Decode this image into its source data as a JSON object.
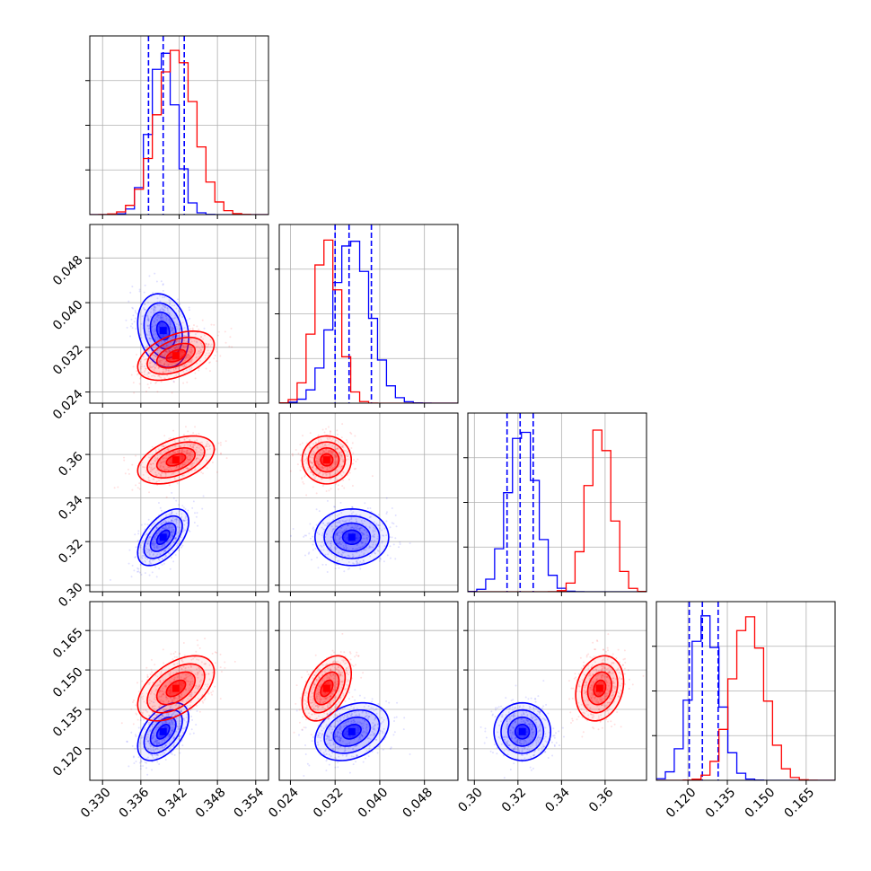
{
  "chart_data": {
    "type": "corner",
    "grid": true,
    "colors": {
      "blue_series": "#0000ff",
      "red_series": "#ff0000",
      "grid": "#b0b0b0",
      "axes": "#000000"
    },
    "params": [
      {
        "range": [
          0.328,
          0.356
        ],
        "ticks": [
          0.33,
          0.336,
          0.342,
          0.348,
          0.354
        ],
        "tick_labels": [
          "0.330",
          "0.336",
          "0.342",
          "0.348",
          "0.354"
        ]
      },
      {
        "range": [
          0.022,
          0.054
        ],
        "ticks": [
          0.024,
          0.032,
          0.04,
          0.048
        ],
        "tick_labels": [
          "0.024",
          "0.032",
          "0.040",
          "0.048"
        ]
      },
      {
        "range": [
          0.297,
          0.379
        ],
        "ticks": [
          0.3,
          0.32,
          0.34,
          0.36
        ],
        "tick_labels": [
          "0.30",
          "0.32",
          "0.34",
          "0.36"
        ]
      },
      {
        "range": [
          0.108,
          0.176
        ],
        "ticks": [
          0.12,
          0.135,
          0.15,
          0.165
        ],
        "tick_labels": [
          "0.120",
          "0.135",
          "0.150",
          "0.165"
        ]
      }
    ],
    "series": [
      {
        "color": "#0000ff",
        "mean": [
          0.3395,
          0.035,
          0.322,
          0.1265
        ],
        "std": [
          0.002,
          0.0033,
          0.0065,
          0.0055
        ],
        "quantiles": [
          [
            0.3372,
            0.3395,
            0.3428
          ],
          [
            0.032,
            0.0345,
            0.0385
          ],
          [
            0.315,
            0.321,
            0.327
          ],
          [
            0.1205,
            0.1255,
            0.1315
          ]
        ]
      },
      {
        "color": "#ff0000",
        "mean": [
          0.3415,
          0.0305,
          0.3575,
          0.143
        ],
        "std": [
          0.003,
          0.0022,
          0.0055,
          0.0062
        ],
        "quantiles": []
      }
    ]
  }
}
